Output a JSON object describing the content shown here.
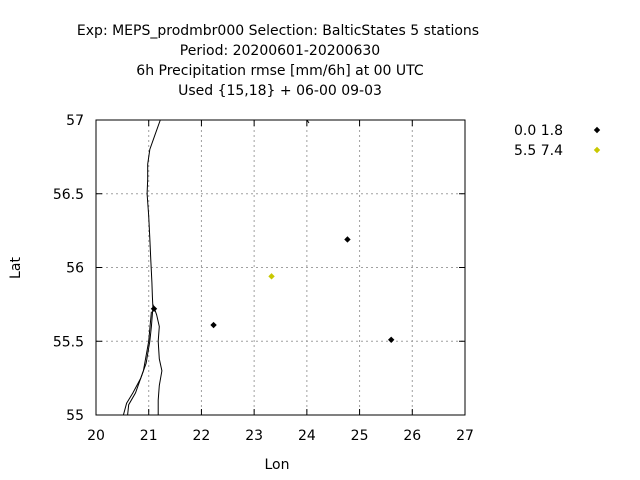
{
  "chart_data": {
    "type": "scatter",
    "title_lines": [
      "Exp: MEPS_prodmbr000   Selection: BalticStates      5 stations",
      "Period: 20200601-20200630",
      "6h Precipitation rmse [mm/6h] at  00 UTC",
      "Used {15,18} + 06-00 09-03"
    ],
    "xlabel": "Lon",
    "ylabel": "Lat",
    "xlim": [
      20,
      27
    ],
    "ylim": [
      55,
      57
    ],
    "xticks": [
      20,
      21,
      22,
      23,
      24,
      25,
      26,
      27
    ],
    "yticks": [
      55,
      55.5,
      56,
      56.5,
      57
    ],
    "ytick_labels": [
      "55",
      "55.5",
      "56",
      "56.5",
      "57"
    ],
    "grid": true,
    "legend_position": "top-right outside",
    "series": [
      {
        "name": "0.0 1.8",
        "color": "#000000",
        "points": [
          [
            21.1,
            55.72
          ],
          [
            22.23,
            55.61
          ],
          [
            24.77,
            56.19
          ],
          [
            25.6,
            55.51
          ]
        ]
      },
      {
        "name": "5.5 7.4",
        "color": "#c8c800",
        "points": [
          [
            23.33,
            55.94
          ]
        ]
      }
    ],
    "coastlines": [
      [
        [
          21.22,
          57.0
        ],
        [
          21.12,
          56.9
        ],
        [
          21.02,
          56.8
        ],
        [
          20.98,
          56.7
        ],
        [
          20.98,
          56.6
        ],
        [
          20.97,
          56.5
        ],
        [
          21.0,
          56.35
        ],
        [
          21.02,
          56.2
        ],
        [
          21.04,
          56.05
        ],
        [
          21.06,
          55.9
        ],
        [
          21.07,
          55.8
        ],
        [
          21.08,
          55.73
        ],
        [
          21.05,
          55.6
        ],
        [
          21.02,
          55.5
        ],
        [
          20.95,
          55.35
        ],
        [
          20.85,
          55.25
        ],
        [
          20.7,
          55.15
        ],
        [
          20.58,
          55.08
        ],
        [
          20.52,
          55.0
        ]
      ],
      [
        [
          21.08,
          55.75
        ],
        [
          21.15,
          55.68
        ],
        [
          21.2,
          55.6
        ],
        [
          21.18,
          55.5
        ],
        [
          21.2,
          55.38
        ],
        [
          21.25,
          55.3
        ],
        [
          21.2,
          55.2
        ],
        [
          21.18,
          55.1
        ],
        [
          21.18,
          55.0
        ]
      ],
      [
        [
          21.05,
          55.7
        ],
        [
          21.0,
          55.5
        ],
        [
          20.9,
          55.3
        ],
        [
          20.75,
          55.15
        ],
        [
          20.62,
          55.07
        ],
        [
          20.6,
          55.0
        ]
      ],
      [
        [
          24.0,
          57.0
        ],
        [
          24.04,
          56.98
        ]
      ]
    ]
  }
}
